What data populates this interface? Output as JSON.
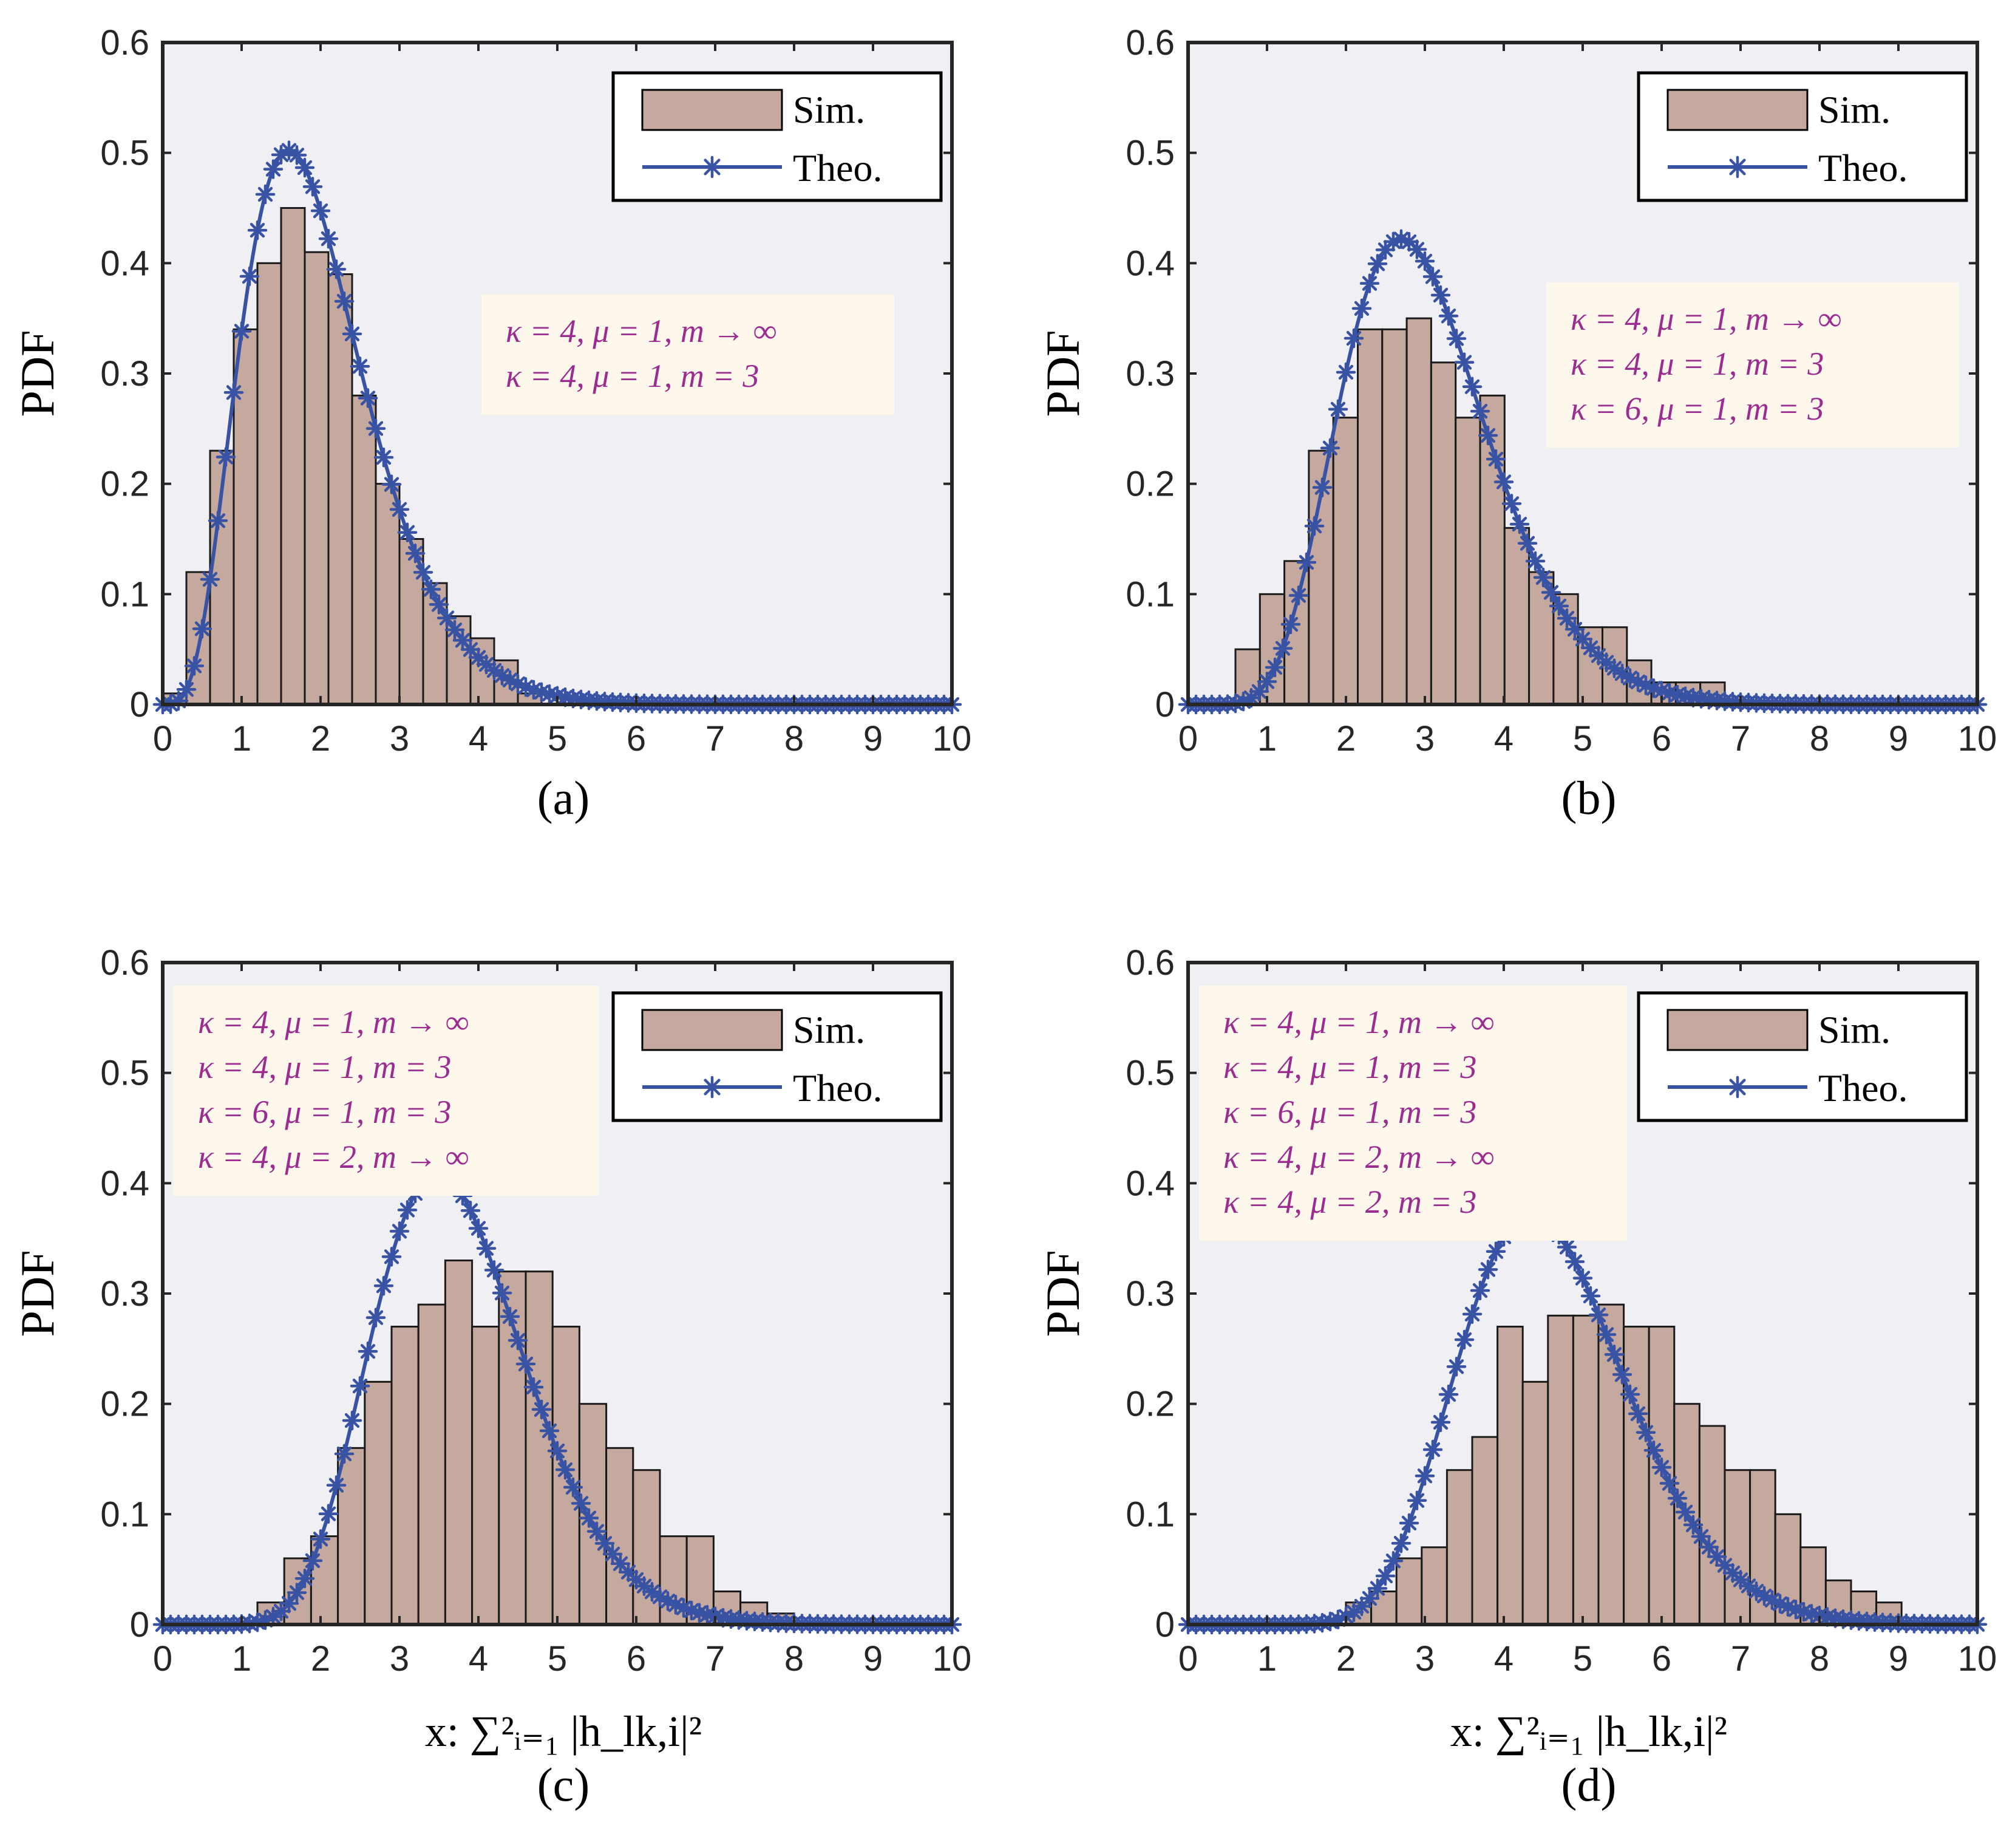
{
  "colors": {
    "axes_bg": "#f0f0f4",
    "bar_fill": "#c6a99e",
    "bar_edge": "#1a1a1a",
    "line": "#3953a4",
    "anno_bg": "#fdf7ec",
    "anno_text": "#9b2d91"
  },
  "chart_data": [
    {
      "panel": "(a)",
      "type": "bar+line",
      "ylabel": "PDF",
      "xlabel": "",
      "caption": "(a)",
      "xlim": [
        0,
        10
      ],
      "ylim": [
        0,
        0.6
      ],
      "xticks": [
        "0",
        "1",
        "2",
        "3",
        "4",
        "5",
        "6",
        "7",
        "8",
        "9",
        "10"
      ],
      "yticks": [
        "0",
        "0.1",
        "0.2",
        "0.3",
        "0.4",
        "0.5",
        "0.6"
      ],
      "legend": {
        "position": "top-right",
        "entries": [
          "Sim.",
          "Theo."
        ]
      },
      "annotation": {
        "position": "middle-right",
        "lines": [
          "κ = 4, μ = 1, m → ∞",
          "κ = 4, μ = 1, m = 3"
        ]
      },
      "histogram": {
        "bin_width": 0.3,
        "bin_start": 0,
        "values": [
          0.01,
          0.12,
          0.23,
          0.34,
          0.4,
          0.45,
          0.41,
          0.39,
          0.28,
          0.2,
          0.15,
          0.11,
          0.08,
          0.06,
          0.04,
          0.01
        ]
      },
      "theory": {
        "distribution": "gamma",
        "shape": 5.2,
        "scale": 0.38,
        "markers": "asterisk"
      }
    },
    {
      "panel": "(b)",
      "type": "bar+line",
      "ylabel": "PDF",
      "xlabel": "",
      "caption": "(b)",
      "xlim": [
        0,
        10
      ],
      "ylim": [
        0,
        0.6
      ],
      "xticks": [
        "0",
        "1",
        "2",
        "3",
        "4",
        "5",
        "6",
        "7",
        "8",
        "9",
        "10"
      ],
      "yticks": [
        "0",
        "0.1",
        "0.2",
        "0.3",
        "0.4",
        "0.5",
        "0.6"
      ],
      "legend": {
        "position": "top-right",
        "entries": [
          "Sim.",
          "Theo."
        ]
      },
      "annotation": {
        "position": "middle-right",
        "lines": [
          "κ = 4, μ = 1, m → ∞",
          "κ = 4, μ = 1, m = 3",
          "κ = 6, μ = 1, m = 3"
        ]
      },
      "histogram": {
        "bin_width": 0.31,
        "bin_start": 0.6,
        "values": [
          0.05,
          0.1,
          0.13,
          0.23,
          0.26,
          0.34,
          0.34,
          0.35,
          0.31,
          0.26,
          0.28,
          0.16,
          0.12,
          0.1,
          0.07,
          0.07,
          0.04,
          0.02,
          0.02,
          0.02
        ]
      },
      "theory": {
        "distribution": "gamma",
        "shape": 9.3,
        "scale": 0.325,
        "markers": "asterisk"
      }
    },
    {
      "panel": "(c)",
      "type": "bar+line",
      "ylabel": "PDF",
      "xlabel": "x: ∑²ᵢ₌₁ |h_lk,i|²",
      "caption": "(c)",
      "xlim": [
        0,
        10
      ],
      "ylim": [
        0,
        0.6
      ],
      "xticks": [
        "0",
        "1",
        "2",
        "3",
        "4",
        "5",
        "6",
        "7",
        "8",
        "9",
        "10"
      ],
      "yticks": [
        "0",
        "0.1",
        "0.2",
        "0.3",
        "0.4",
        "0.5",
        "0.6"
      ],
      "legend": {
        "position": "top-right",
        "entries": [
          "Sim.",
          "Theo."
        ]
      },
      "annotation": {
        "position": "top-left",
        "lines": [
          "κ = 4, μ = 1, m → ∞",
          "κ = 4, μ = 1, m = 3",
          "κ = 6, μ = 1, m = 3",
          "κ = 4, μ = 2, m → ∞"
        ]
      },
      "histogram": {
        "bin_width": 0.34,
        "bin_start": 1.2,
        "values": [
          0.02,
          0.06,
          0.08,
          0.16,
          0.22,
          0.27,
          0.29,
          0.33,
          0.27,
          0.32,
          0.32,
          0.27,
          0.2,
          0.16,
          0.14,
          0.08,
          0.08,
          0.03,
          0.02,
          0.01
        ]
      },
      "theory": {
        "distribution": "gamma",
        "shape": 13.9,
        "scale": 0.27,
        "markers": "asterisk"
      }
    },
    {
      "panel": "(d)",
      "type": "bar+line",
      "ylabel": "PDF",
      "xlabel": "x: ∑²ᵢ₌₁ |h_lk,i|²",
      "caption": "(d)",
      "xlim": [
        0,
        10
      ],
      "ylim": [
        0,
        0.6
      ],
      "xticks": [
        "0",
        "1",
        "2",
        "3",
        "4",
        "5",
        "6",
        "7",
        "8",
        "9",
        "10"
      ],
      "yticks": [
        "0",
        "0.1",
        "0.2",
        "0.3",
        "0.4",
        "0.5",
        "0.6"
      ],
      "legend": {
        "position": "top-right",
        "entries": [
          "Sim.",
          "Theo."
        ]
      },
      "annotation": {
        "position": "top-left",
        "lines": [
          "κ = 4, μ = 1, m → ∞",
          "κ = 4, μ = 1, m = 3",
          "κ = 6, μ = 1, m = 3",
          "κ = 4, μ = 2, m → ∞",
          "κ = 4, μ = 2, m = 3"
        ]
      },
      "histogram": {
        "bin_width": 0.32,
        "bin_start": 2.0,
        "values": [
          0.02,
          0.03,
          0.06,
          0.07,
          0.14,
          0.17,
          0.27,
          0.22,
          0.28,
          0.28,
          0.29,
          0.27,
          0.27,
          0.2,
          0.18,
          0.14,
          0.14,
          0.1,
          0.07,
          0.04,
          0.03,
          0.02
        ]
      },
      "theory": {
        "distribution": "gamma",
        "shape": 17.6,
        "scale": 0.262,
        "markers": "asterisk"
      }
    }
  ]
}
